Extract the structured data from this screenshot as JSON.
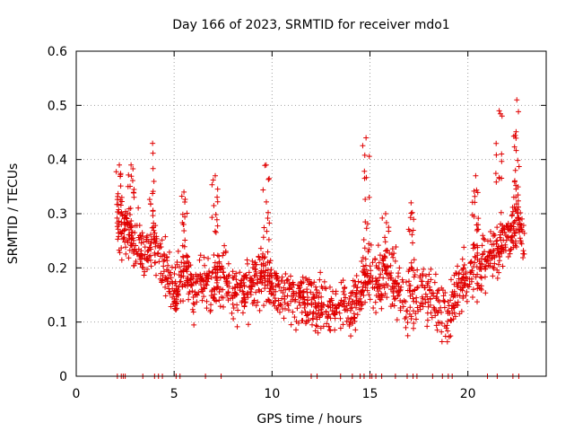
{
  "chart_data": {
    "type": "scatter",
    "title": "Day 166 of 2023, SRMTID for receiver mdo1",
    "xlabel": "GPS time / hours",
    "ylabel": "SRMTID / TECUs",
    "xlim": [
      0,
      24
    ],
    "ylim": [
      0,
      0.6
    ],
    "x_ticks": [
      "0",
      "5",
      "10",
      "15",
      "20"
    ],
    "y_ticks": [
      "0",
      "0.1",
      "0.2",
      "0.3",
      "0.4",
      "0.5",
      "0.6"
    ],
    "grid": true,
    "marker": "plus",
    "series": [
      {
        "name": "SRMTID",
        "color": "#e00000",
        "trend": {
          "x": [
            2.1,
            2.5,
            3.0,
            3.5,
            4.0,
            4.5,
            5.0,
            5.5,
            6.0,
            6.5,
            7.0,
            7.5,
            8.0,
            8.5,
            9.0,
            9.5,
            10.0,
            10.5,
            11.0,
            11.5,
            12.0,
            12.5,
            13.0,
            13.5,
            14.0,
            14.5,
            15.0,
            15.5,
            16.0,
            16.5,
            17.0,
            17.5,
            18.0,
            18.5,
            19.0,
            19.5,
            20.0,
            20.5,
            21.0,
            21.5,
            22.0,
            22.5,
            22.9
          ],
          "y": [
            0.28,
            0.27,
            0.24,
            0.22,
            0.24,
            0.2,
            0.15,
            0.19,
            0.16,
            0.18,
            0.17,
            0.19,
            0.15,
            0.16,
            0.18,
            0.19,
            0.17,
            0.16,
            0.15,
            0.14,
            0.13,
            0.12,
            0.13,
            0.14,
            0.13,
            0.16,
            0.19,
            0.17,
            0.2,
            0.15,
            0.13,
            0.16,
            0.15,
            0.13,
            0.11,
            0.17,
            0.18,
            0.2,
            0.22,
            0.23,
            0.26,
            0.29,
            0.25
          ]
        },
        "spread": 0.05,
        "n_points": 1500,
        "bursts": [
          {
            "x": 2.2,
            "y_max": 0.39
          },
          {
            "x": 2.8,
            "y_max": 0.39
          },
          {
            "x": 3.9,
            "y_max": 0.43
          },
          {
            "x": 5.5,
            "y_max": 0.34
          },
          {
            "x": 7.1,
            "y_max": 0.37
          },
          {
            "x": 9.7,
            "y_max": 0.39
          },
          {
            "x": 14.8,
            "y_max": 0.44
          },
          {
            "x": 15.8,
            "y_max": 0.3
          },
          {
            "x": 17.1,
            "y_max": 0.32
          },
          {
            "x": 20.4,
            "y_max": 0.37
          },
          {
            "x": 21.6,
            "y_max": 0.49
          },
          {
            "x": 22.5,
            "y_max": 0.51
          }
        ],
        "zero_markers_x": [
          2.1,
          2.3,
          2.4,
          2.5,
          3.4,
          4.0,
          4.2,
          4.4,
          5.1,
          5.3,
          6.6,
          7.4,
          12.0,
          12.3,
          13.5,
          14.1,
          14.5,
          14.7,
          15.0,
          15.1,
          15.3,
          15.6,
          16.3,
          16.9,
          17.2,
          17.4,
          18.2,
          18.7,
          19.0,
          19.2,
          21.0,
          21.5,
          22.3,
          22.6
        ]
      }
    ]
  }
}
